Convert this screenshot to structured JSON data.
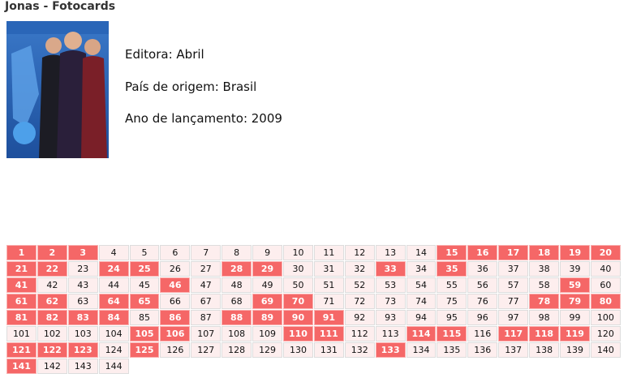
{
  "header": {
    "title": "Jonas - Fotocards"
  },
  "info": [
    "Editora: Abril",
    "País de origem: Brasil",
    "Ano de lançamento: 2009"
  ],
  "grid": {
    "columns": 20,
    "cells": [
      {
        "n": 1,
        "marked": true
      },
      {
        "n": 2,
        "marked": true
      },
      {
        "n": 3,
        "marked": true
      },
      {
        "n": 4,
        "marked": false
      },
      {
        "n": 5,
        "marked": false
      },
      {
        "n": 6,
        "marked": false
      },
      {
        "n": 7,
        "marked": false
      },
      {
        "n": 8,
        "marked": false
      },
      {
        "n": 9,
        "marked": false
      },
      {
        "n": 10,
        "marked": false
      },
      {
        "n": 11,
        "marked": false
      },
      {
        "n": 12,
        "marked": false
      },
      {
        "n": 13,
        "marked": false
      },
      {
        "n": 14,
        "marked": false
      },
      {
        "n": 15,
        "marked": true
      },
      {
        "n": 16,
        "marked": true
      },
      {
        "n": 17,
        "marked": true
      },
      {
        "n": 18,
        "marked": true
      },
      {
        "n": 19,
        "marked": true
      },
      {
        "n": 20,
        "marked": true
      },
      {
        "n": 21,
        "marked": true
      },
      {
        "n": 22,
        "marked": true
      },
      {
        "n": 23,
        "marked": false
      },
      {
        "n": 24,
        "marked": true
      },
      {
        "n": 25,
        "marked": true
      },
      {
        "n": 26,
        "marked": false
      },
      {
        "n": 27,
        "marked": false
      },
      {
        "n": 28,
        "marked": true
      },
      {
        "n": 29,
        "marked": true
      },
      {
        "n": 30,
        "marked": false
      },
      {
        "n": 31,
        "marked": false
      },
      {
        "n": 32,
        "marked": false
      },
      {
        "n": 33,
        "marked": true
      },
      {
        "n": 34,
        "marked": false
      },
      {
        "n": 35,
        "marked": true
      },
      {
        "n": 36,
        "marked": false
      },
      {
        "n": 37,
        "marked": false
      },
      {
        "n": 38,
        "marked": false
      },
      {
        "n": 39,
        "marked": false
      },
      {
        "n": 40,
        "marked": false
      },
      {
        "n": 41,
        "marked": true
      },
      {
        "n": 42,
        "marked": false
      },
      {
        "n": 43,
        "marked": false
      },
      {
        "n": 44,
        "marked": false
      },
      {
        "n": 45,
        "marked": false
      },
      {
        "n": 46,
        "marked": true
      },
      {
        "n": 47,
        "marked": false
      },
      {
        "n": 48,
        "marked": false
      },
      {
        "n": 49,
        "marked": false
      },
      {
        "n": 50,
        "marked": false
      },
      {
        "n": 51,
        "marked": false
      },
      {
        "n": 52,
        "marked": false
      },
      {
        "n": 53,
        "marked": false
      },
      {
        "n": 54,
        "marked": false
      },
      {
        "n": 55,
        "marked": false
      },
      {
        "n": 56,
        "marked": false
      },
      {
        "n": 57,
        "marked": false
      },
      {
        "n": 58,
        "marked": false
      },
      {
        "n": 59,
        "marked": true
      },
      {
        "n": 60,
        "marked": false
      },
      {
        "n": 61,
        "marked": true
      },
      {
        "n": 62,
        "marked": true
      },
      {
        "n": 63,
        "marked": false
      },
      {
        "n": 64,
        "marked": true
      },
      {
        "n": 65,
        "marked": true
      },
      {
        "n": 66,
        "marked": false
      },
      {
        "n": 67,
        "marked": false
      },
      {
        "n": 68,
        "marked": false
      },
      {
        "n": 69,
        "marked": true
      },
      {
        "n": 70,
        "marked": true
      },
      {
        "n": 71,
        "marked": false
      },
      {
        "n": 72,
        "marked": false
      },
      {
        "n": 73,
        "marked": false
      },
      {
        "n": 74,
        "marked": false
      },
      {
        "n": 75,
        "marked": false
      },
      {
        "n": 76,
        "marked": false
      },
      {
        "n": 77,
        "marked": false
      },
      {
        "n": 78,
        "marked": true
      },
      {
        "n": 79,
        "marked": true
      },
      {
        "n": 80,
        "marked": true
      },
      {
        "n": 81,
        "marked": true
      },
      {
        "n": 82,
        "marked": true
      },
      {
        "n": 83,
        "marked": true
      },
      {
        "n": 84,
        "marked": true
      },
      {
        "n": 85,
        "marked": false
      },
      {
        "n": 86,
        "marked": true
      },
      {
        "n": 87,
        "marked": false
      },
      {
        "n": 88,
        "marked": true
      },
      {
        "n": 89,
        "marked": true
      },
      {
        "n": 90,
        "marked": true
      },
      {
        "n": 91,
        "marked": true
      },
      {
        "n": 92,
        "marked": false
      },
      {
        "n": 93,
        "marked": false
      },
      {
        "n": 94,
        "marked": false
      },
      {
        "n": 95,
        "marked": false
      },
      {
        "n": 96,
        "marked": false
      },
      {
        "n": 97,
        "marked": false
      },
      {
        "n": 98,
        "marked": false
      },
      {
        "n": 99,
        "marked": false
      },
      {
        "n": 100,
        "marked": false
      },
      {
        "n": 101,
        "marked": false
      },
      {
        "n": 102,
        "marked": false
      },
      {
        "n": 103,
        "marked": false
      },
      {
        "n": 104,
        "marked": false
      },
      {
        "n": 105,
        "marked": true
      },
      {
        "n": 106,
        "marked": true
      },
      {
        "n": 107,
        "marked": false
      },
      {
        "n": 108,
        "marked": false
      },
      {
        "n": 109,
        "marked": false
      },
      {
        "n": 110,
        "marked": true
      },
      {
        "n": 111,
        "marked": true
      },
      {
        "n": 112,
        "marked": false
      },
      {
        "n": 113,
        "marked": false
      },
      {
        "n": 114,
        "marked": true
      },
      {
        "n": 115,
        "marked": true
      },
      {
        "n": 116,
        "marked": false
      },
      {
        "n": 117,
        "marked": true
      },
      {
        "n": 118,
        "marked": true
      },
      {
        "n": 119,
        "marked": true
      },
      {
        "n": 120,
        "marked": false
      },
      {
        "n": 121,
        "marked": true
      },
      {
        "n": 122,
        "marked": true
      },
      {
        "n": 123,
        "marked": true
      },
      {
        "n": 124,
        "marked": false
      },
      {
        "n": 125,
        "marked": true
      },
      {
        "n": 126,
        "marked": false
      },
      {
        "n": 127,
        "marked": false
      },
      {
        "n": 128,
        "marked": false
      },
      {
        "n": 129,
        "marked": false
      },
      {
        "n": 130,
        "marked": false
      },
      {
        "n": 131,
        "marked": false
      },
      {
        "n": 132,
        "marked": false
      },
      {
        "n": 133,
        "marked": true
      },
      {
        "n": 134,
        "marked": false
      },
      {
        "n": 135,
        "marked": false
      },
      {
        "n": 136,
        "marked": false
      },
      {
        "n": 137,
        "marked": false
      },
      {
        "n": 138,
        "marked": false
      },
      {
        "n": 139,
        "marked": false
      },
      {
        "n": 140,
        "marked": false
      },
      {
        "n": 141,
        "marked": true
      },
      {
        "n": 142,
        "marked": false
      },
      {
        "n": 143,
        "marked": false
      },
      {
        "n": 144,
        "marked": false
      }
    ]
  }
}
